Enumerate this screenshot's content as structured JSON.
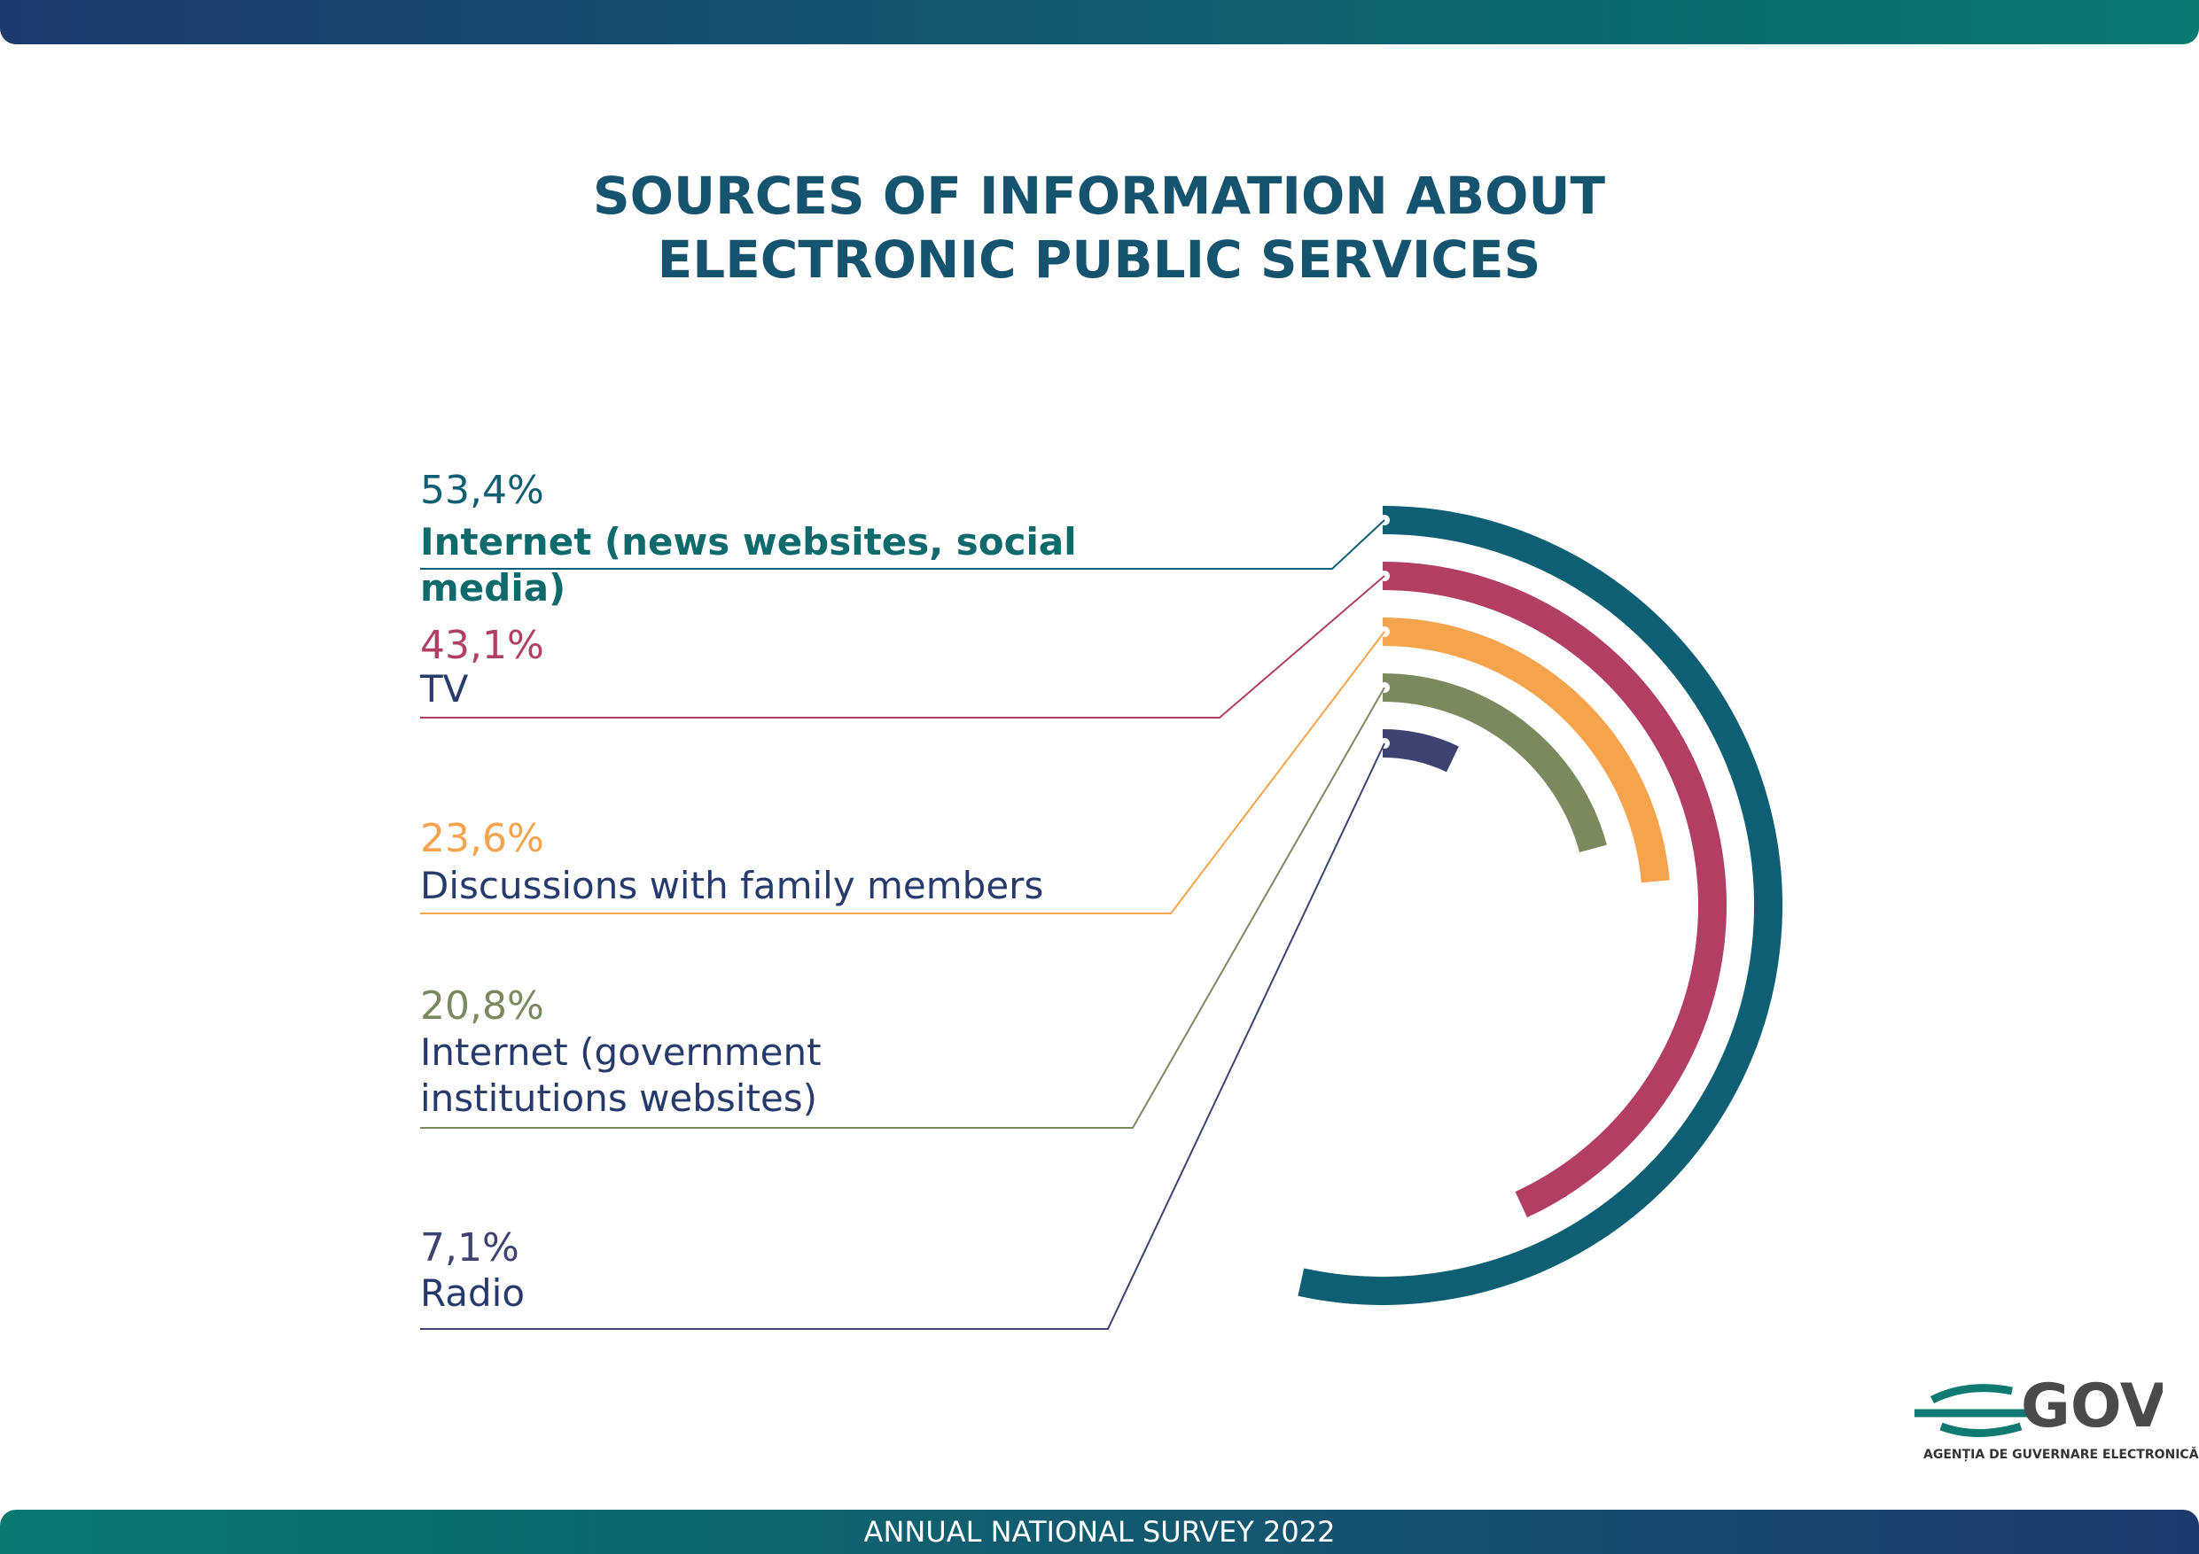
{
  "chart_data": {
    "type": "radial-bar",
    "title": "SOURCES OF INFORMATION ABOUT ELECTRONIC PUBLIC SERVICES",
    "categories": [
      "Internet (news websites, social media)",
      "TV",
      "Discussions with family members",
      "Internet (government institutions websites)",
      "Radio"
    ],
    "values": [
      53.4,
      43.1,
      23.6,
      20.8,
      7.1
    ],
    "value_labels": [
      "53,4%",
      "43,1%",
      "23,6%",
      "20,8%",
      "7,1%"
    ],
    "colors": [
      "#0f5f74",
      "#b23f62",
      "#f5a34c",
      "#7a8a5e",
      "#3d4270"
    ],
    "ylim": [
      0,
      100
    ]
  },
  "footer": {
    "text": "ANNUAL NATIONAL SURVEY 2022"
  },
  "logo": {
    "name": "GOV",
    "subtitle": "AGENȚIA DE GUVERNARE ELECTRONICĂ"
  }
}
